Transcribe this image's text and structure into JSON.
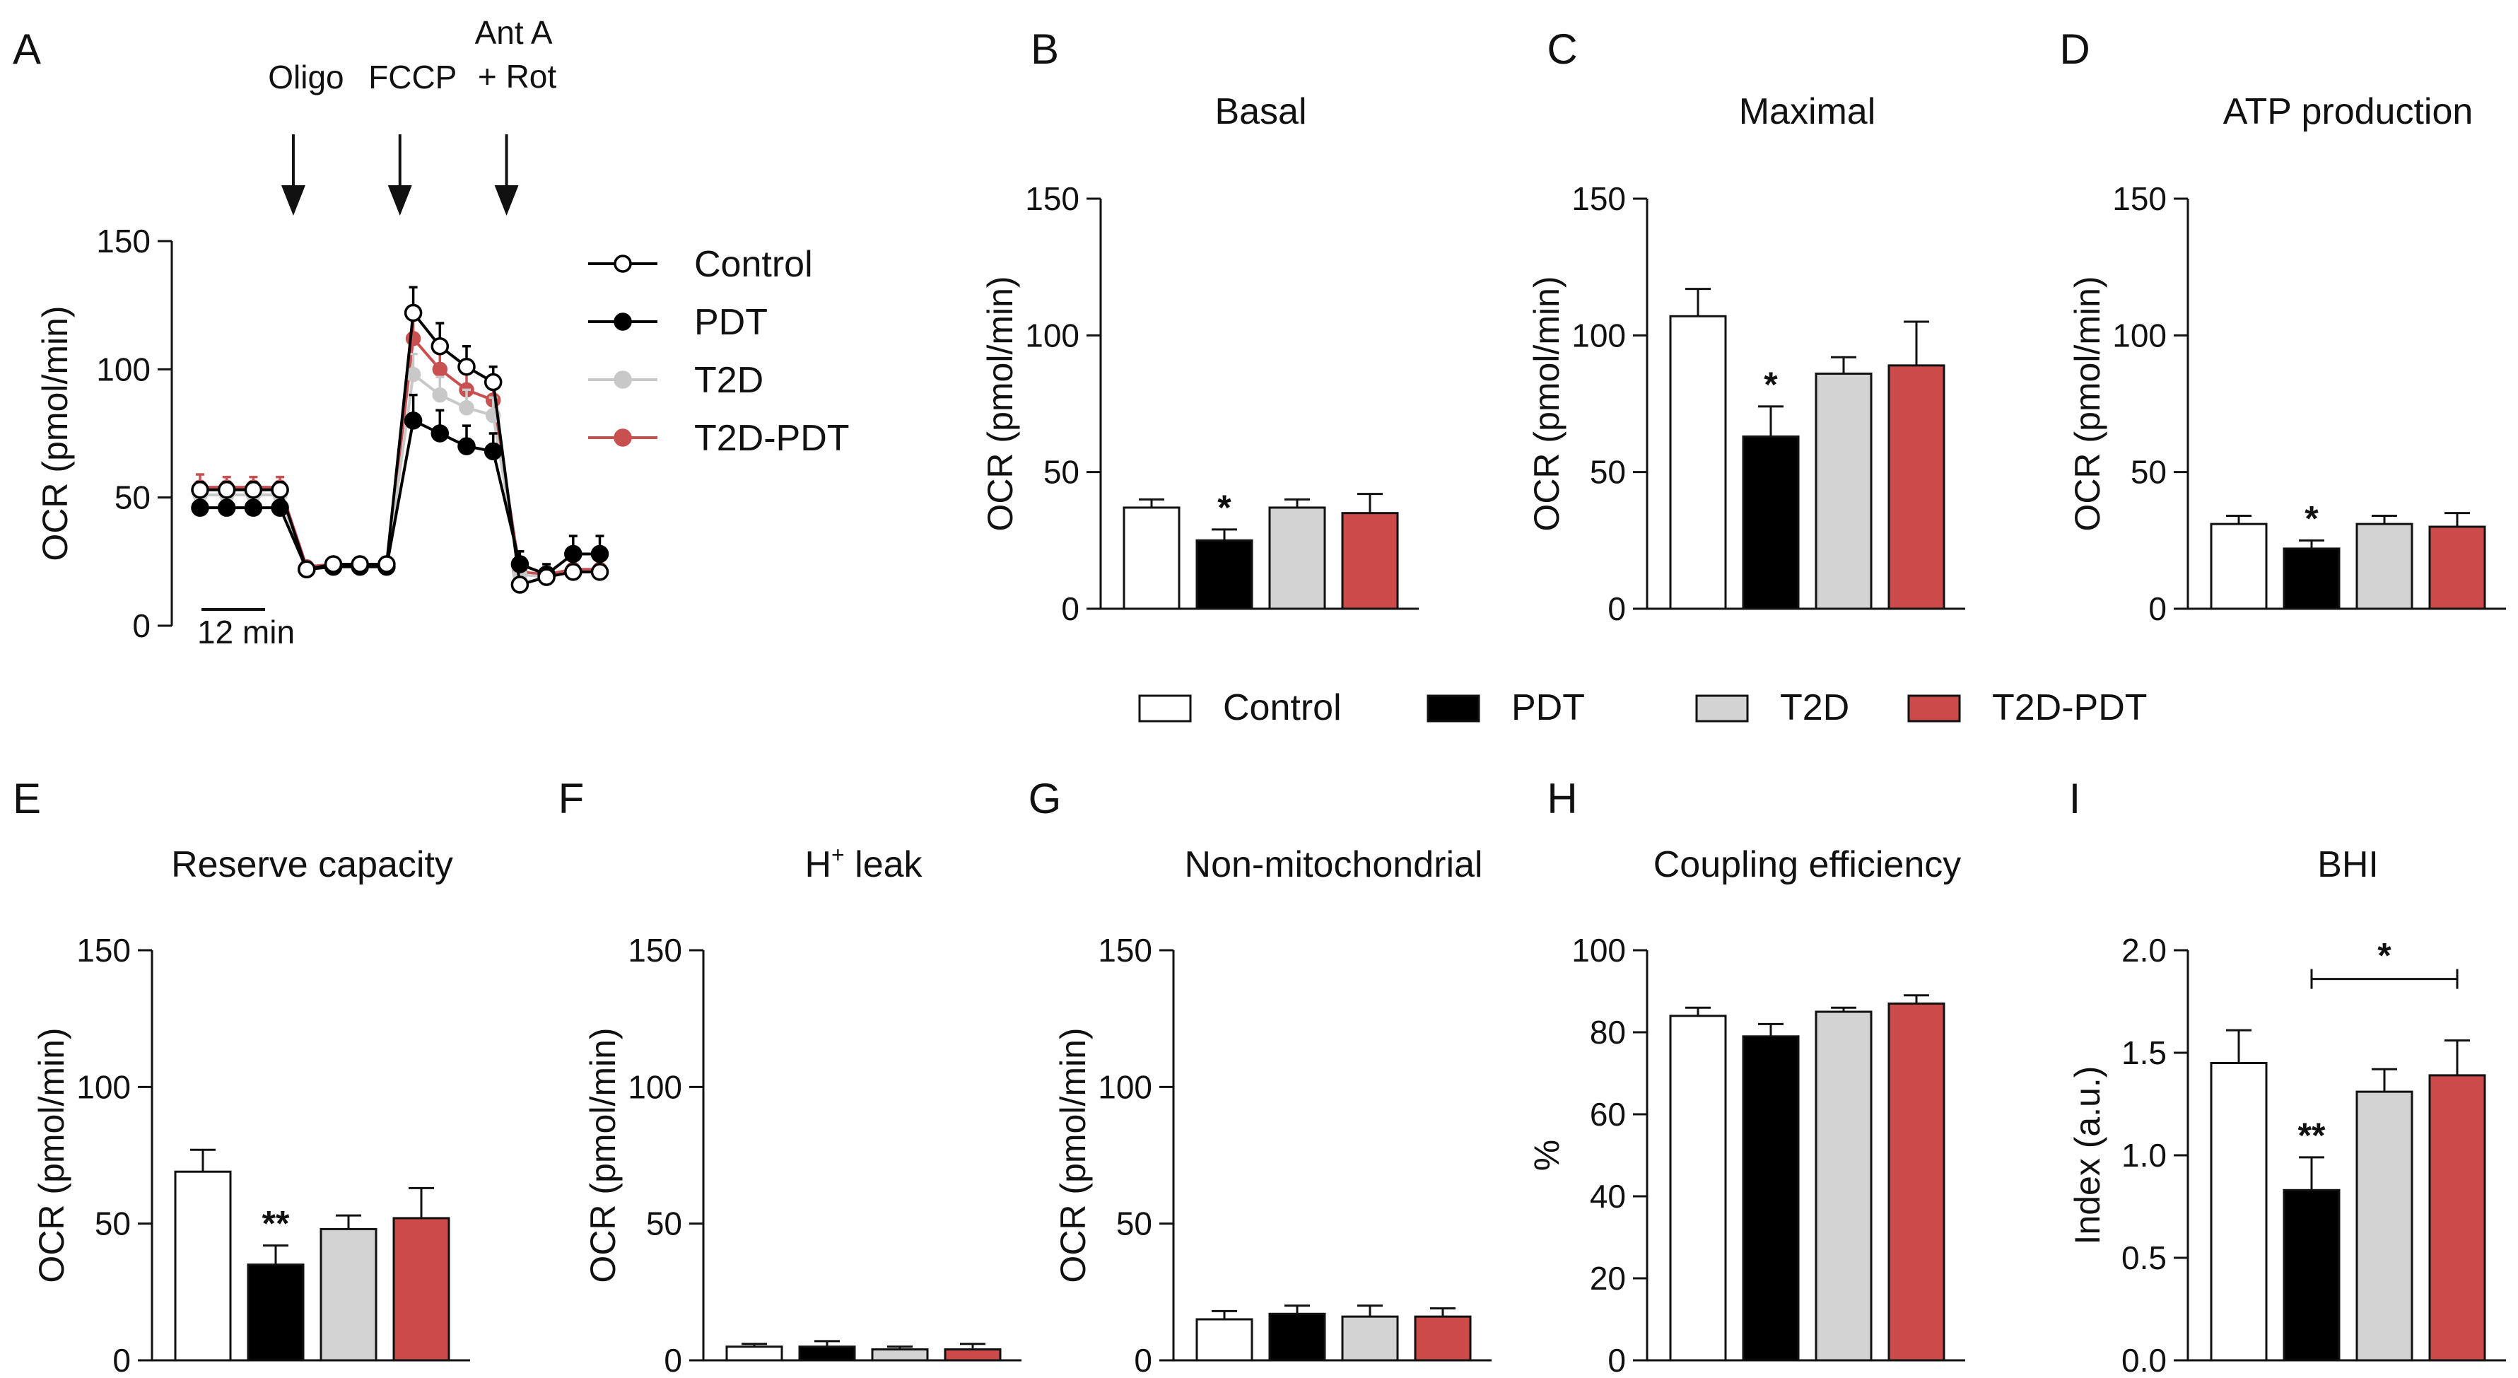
{
  "colors": {
    "control": "#ffffff",
    "pdt": "#000000",
    "t2d": "#d3d3d3",
    "t2dpdt": "#cc4a4a",
    "t2d_line": "#c8c8c8",
    "t2dpdt_line": "#c85050",
    "axis": "#111111"
  },
  "legend": {
    "items": [
      {
        "key": "control",
        "label": "Control"
      },
      {
        "key": "pdt",
        "label": "PDT"
      },
      {
        "key": "t2d",
        "label": "T2D"
      },
      {
        "key": "t2dpdt",
        "label": "T2D-PDT"
      }
    ]
  },
  "chart_data": [
    {
      "id": "A",
      "type": "line",
      "panel_letter": "A",
      "title": "",
      "ylabel": "OCR (pmol/min)",
      "ylim": [
        0,
        150
      ],
      "yticks": [
        "0",
        "50",
        "100",
        "150"
      ],
      "scalebar_label": "12 min",
      "injections": [
        {
          "label": "Oligo",
          "label2": "",
          "after_point": 3
        },
        {
          "label": "FCCP",
          "label2": "",
          "after_point": 7
        },
        {
          "label": "Ant A",
          "label2": "+ Rot",
          "after_point": 11
        }
      ],
      "x": [
        1,
        2,
        3,
        4,
        5,
        6,
        7,
        8,
        9,
        10,
        11,
        12,
        13,
        14,
        15,
        16
      ],
      "series": [
        {
          "name": "T2D-PDT",
          "key": "t2dpdt",
          "values": [
            54,
            54,
            54,
            54,
            23,
            24,
            24,
            24,
            112,
            100,
            92,
            88,
            21,
            20,
            22,
            22
          ],
          "err": [
            5,
            4,
            4,
            4,
            1,
            1,
            1,
            1,
            10,
            9,
            8,
            8,
            2,
            2,
            2,
            2
          ]
        },
        {
          "name": "T2D",
          "key": "t2d",
          "values": [
            51,
            51,
            51,
            51,
            22,
            23,
            23,
            23,
            98,
            90,
            85,
            82,
            20,
            19,
            21,
            21
          ],
          "err": [
            3,
            3,
            3,
            3,
            1,
            1,
            1,
            1,
            8,
            7,
            7,
            7,
            2,
            2,
            2,
            2
          ]
        },
        {
          "name": "PDT",
          "key": "pdt",
          "values": [
            46,
            46,
            46,
            46,
            22,
            23,
            23,
            23,
            80,
            75,
            70,
            68,
            24,
            20,
            28,
            28
          ],
          "err": [
            2,
            2,
            2,
            2,
            1,
            1,
            1,
            1,
            10,
            9,
            8,
            7,
            5,
            4,
            7,
            7
          ]
        },
        {
          "name": "Control",
          "key": "control",
          "values": [
            53,
            53,
            53,
            53,
            22,
            24,
            24,
            24,
            122,
            109,
            101,
            95,
            16,
            19,
            21,
            21
          ],
          "err": [
            3,
            3,
            3,
            3,
            1,
            1,
            1,
            1,
            10,
            9,
            8,
            6,
            2,
            2,
            2,
            2
          ]
        }
      ]
    },
    {
      "id": "B",
      "type": "bar",
      "panel_letter": "B",
      "title": "Basal",
      "ylabel": "OCR  (pmol/min)",
      "ylim": [
        0,
        150
      ],
      "yticks": [
        "0",
        "50",
        "100",
        "150"
      ],
      "categories": [
        "Control",
        "PDT",
        "T2D",
        "T2D-PDT"
      ],
      "values": [
        37,
        25,
        37,
        35
      ],
      "err": [
        3,
        4,
        3,
        7
      ],
      "annotations": [
        {
          "type": "star",
          "bar": 1,
          "text": "*"
        }
      ]
    },
    {
      "id": "C",
      "type": "bar",
      "panel_letter": "C",
      "title": "Maximal",
      "ylabel": "OCR  (pmol/min)",
      "ylim": [
        0,
        150
      ],
      "yticks": [
        "0",
        "50",
        "100",
        "150"
      ],
      "categories": [
        "Control",
        "PDT",
        "T2D",
        "T2D-PDT"
      ],
      "values": [
        107,
        63,
        86,
        89
      ],
      "err": [
        10,
        11,
        6,
        16
      ],
      "annotations": [
        {
          "type": "star",
          "bar": 1,
          "text": "*"
        }
      ]
    },
    {
      "id": "D",
      "type": "bar",
      "panel_letter": "D",
      "title": "ATP production",
      "ylabel": "OCR  (pmol/min)",
      "ylim": [
        0,
        150
      ],
      "yticks": [
        "0",
        "50",
        "100",
        "150"
      ],
      "categories": [
        "Control",
        "PDT",
        "T2D",
        "T2D-PDT"
      ],
      "values": [
        31,
        22,
        31,
        30
      ],
      "err": [
        3,
        3,
        3,
        5
      ],
      "annotations": [
        {
          "type": "star",
          "bar": 1,
          "text": "*"
        }
      ]
    },
    {
      "id": "E",
      "type": "bar",
      "panel_letter": "E",
      "title": "Reserve capacity",
      "ylabel": "OCR (pmol/min)",
      "ylim": [
        0,
        150
      ],
      "yticks": [
        "0",
        "50",
        "100",
        "150"
      ],
      "categories": [
        "Control",
        "PDT",
        "T2D",
        "T2D-PDT"
      ],
      "values": [
        69,
        35,
        48,
        52
      ],
      "err": [
        8,
        7,
        5,
        11
      ],
      "annotations": [
        {
          "type": "star",
          "bar": 1,
          "text": "**"
        }
      ]
    },
    {
      "id": "F",
      "type": "bar",
      "panel_letter": "F",
      "title": "H",
      "title_sup": "+",
      "title_rest": " leak",
      "ylabel": "OCR  (pmol/min)",
      "ylim": [
        0,
        150
      ],
      "yticks": [
        "0",
        "50",
        "100",
        "150"
      ],
      "categories": [
        "Control",
        "PDT",
        "T2D",
        "T2D-PDT"
      ],
      "values": [
        5,
        5,
        4,
        4
      ],
      "err": [
        1,
        2,
        1,
        2
      ],
      "annotations": []
    },
    {
      "id": "G",
      "type": "bar",
      "panel_letter": "G",
      "title": "Non-mitochondrial",
      "ylabel": "OCR  (pmol/min)",
      "ylim": [
        0,
        150
      ],
      "yticks": [
        "0",
        "50",
        "100",
        "150"
      ],
      "categories": [
        "Control",
        "PDT",
        "T2D",
        "T2D-PDT"
      ],
      "values": [
        15,
        17,
        16,
        16
      ],
      "err": [
        3,
        3,
        4,
        3
      ],
      "annotations": []
    },
    {
      "id": "H",
      "type": "bar",
      "panel_letter": "H",
      "title": "Coupling efficiency",
      "ylabel": "%",
      "ylim": [
        0,
        100
      ],
      "yticks": [
        "0",
        "20",
        "40",
        "60",
        "80",
        "100"
      ],
      "categories": [
        "Control",
        "PDT",
        "T2D",
        "T2D-PDT"
      ],
      "values": [
        84,
        79,
        85,
        87
      ],
      "err": [
        2,
        3,
        1,
        2
      ],
      "annotations": []
    },
    {
      "id": "I",
      "type": "bar",
      "panel_letter": "I",
      "title": "BHI",
      "ylabel": "Index (a.u.)",
      "ylim": [
        0,
        2
      ],
      "yticks": [
        "0.0",
        "0.5",
        "1.0",
        "1.5",
        "2.0"
      ],
      "categories": [
        "Control",
        "PDT",
        "T2D",
        "T2D-PDT"
      ],
      "values": [
        1.45,
        0.83,
        1.31,
        1.39
      ],
      "err": [
        0.16,
        0.16,
        0.11,
        0.17
      ],
      "annotations": [
        {
          "type": "star",
          "bar": 1,
          "text": "**"
        },
        {
          "type": "bracket",
          "from": 1,
          "to": 3,
          "level": 1.86,
          "text": "*"
        }
      ]
    }
  ]
}
